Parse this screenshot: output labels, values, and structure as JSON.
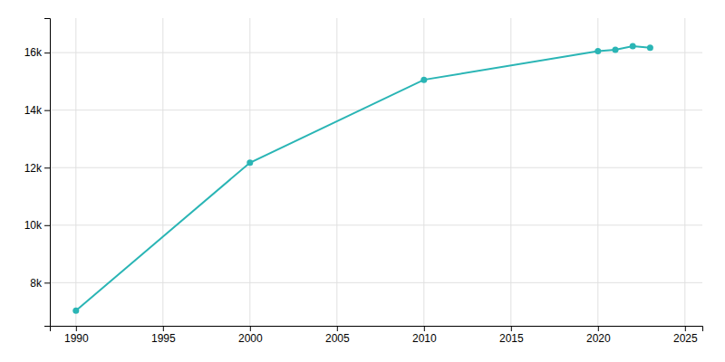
{
  "chart_data": {
    "type": "line",
    "x": [
      1990,
      2000,
      2010,
      2020,
      2021,
      2022,
      2023
    ],
    "values": [
      7027,
      12173,
      15056,
      16050,
      16100,
      16225,
      16173
    ],
    "color": "#2ab5b5",
    "marker": "circle",
    "xlim": [
      1988.5,
      2026
    ],
    "ylim": [
      6500,
      17200
    ],
    "xticks": [
      1990,
      1995,
      2000,
      2005,
      2010,
      2015,
      2020,
      2025
    ],
    "yticks": [
      {
        "value": 8000,
        "label": "8k"
      },
      {
        "value": 10000,
        "label": "10k"
      },
      {
        "value": 12000,
        "label": "12k"
      },
      {
        "value": 14000,
        "label": "14k"
      },
      {
        "value": 16000,
        "label": "16k"
      }
    ],
    "grid": true
  }
}
